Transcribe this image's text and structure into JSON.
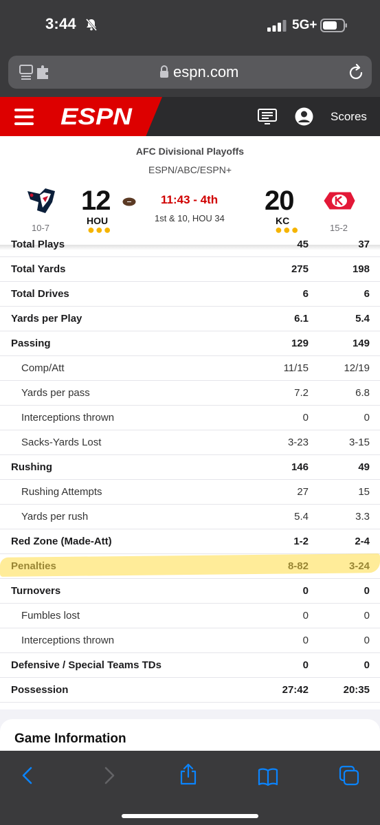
{
  "status": {
    "time": "3:44",
    "network": "5G+"
  },
  "browser": {
    "url": "espn.com"
  },
  "nav": {
    "logo": "ESPN",
    "scores_label": "Scores"
  },
  "game": {
    "series": "AFC Divisional Playoffs",
    "network": "ESPN/ABC/ESPN+",
    "clock": "11:43 - 4th",
    "down_distance": "1st & 10, HOU 34",
    "home": {
      "abbr": "HOU",
      "score": "12",
      "record": "10-7",
      "timeouts": "●●●"
    },
    "away": {
      "abbr": "KC",
      "score": "20",
      "record": "15-2",
      "timeouts": "●●●"
    }
  },
  "stats": [
    {
      "label": "Total Plays",
      "hou": "45",
      "kc": "37",
      "type": "main"
    },
    {
      "label": "Total Yards",
      "hou": "275",
      "kc": "198",
      "type": "main"
    },
    {
      "label": "Total Drives",
      "hou": "6",
      "kc": "6",
      "type": "main"
    },
    {
      "label": "Yards per Play",
      "hou": "6.1",
      "kc": "5.4",
      "type": "main"
    },
    {
      "label": "Passing",
      "hou": "129",
      "kc": "149",
      "type": "main"
    },
    {
      "label": "Comp/Att",
      "hou": "11/15",
      "kc": "12/19",
      "type": "sub"
    },
    {
      "label": "Yards per pass",
      "hou": "7.2",
      "kc": "6.8",
      "type": "sub"
    },
    {
      "label": "Interceptions thrown",
      "hou": "0",
      "kc": "0",
      "type": "sub"
    },
    {
      "label": "Sacks-Yards Lost",
      "hou": "3-23",
      "kc": "3-15",
      "type": "sub"
    },
    {
      "label": "Rushing",
      "hou": "146",
      "kc": "49",
      "type": "main"
    },
    {
      "label": "Rushing Attempts",
      "hou": "27",
      "kc": "15",
      "type": "sub"
    },
    {
      "label": "Yards per rush",
      "hou": "5.4",
      "kc": "3.3",
      "type": "sub"
    },
    {
      "label": "Red Zone (Made-Att)",
      "hou": "1-2",
      "kc": "2-4",
      "type": "main"
    },
    {
      "label": "Penalties",
      "hou": "8-82",
      "kc": "3-24",
      "type": "main"
    },
    {
      "label": "Turnovers",
      "hou": "0",
      "kc": "0",
      "type": "main"
    },
    {
      "label": "Fumbles lost",
      "hou": "0",
      "kc": "0",
      "type": "sub"
    },
    {
      "label": "Interceptions thrown",
      "hou": "0",
      "kc": "0",
      "type": "sub"
    },
    {
      "label": "Defensive / Special Teams TDs",
      "hou": "0",
      "kc": "0",
      "type": "main"
    },
    {
      "label": "Possession",
      "hou": "27:42",
      "kc": "20:35",
      "type": "main"
    }
  ],
  "game_info": {
    "title": "Game Information"
  },
  "colors": {
    "espn_red": "#dd0000",
    "clock_red": "#d00000",
    "timeout_gold": "#f5b400",
    "highlight": "#ffdc46"
  }
}
